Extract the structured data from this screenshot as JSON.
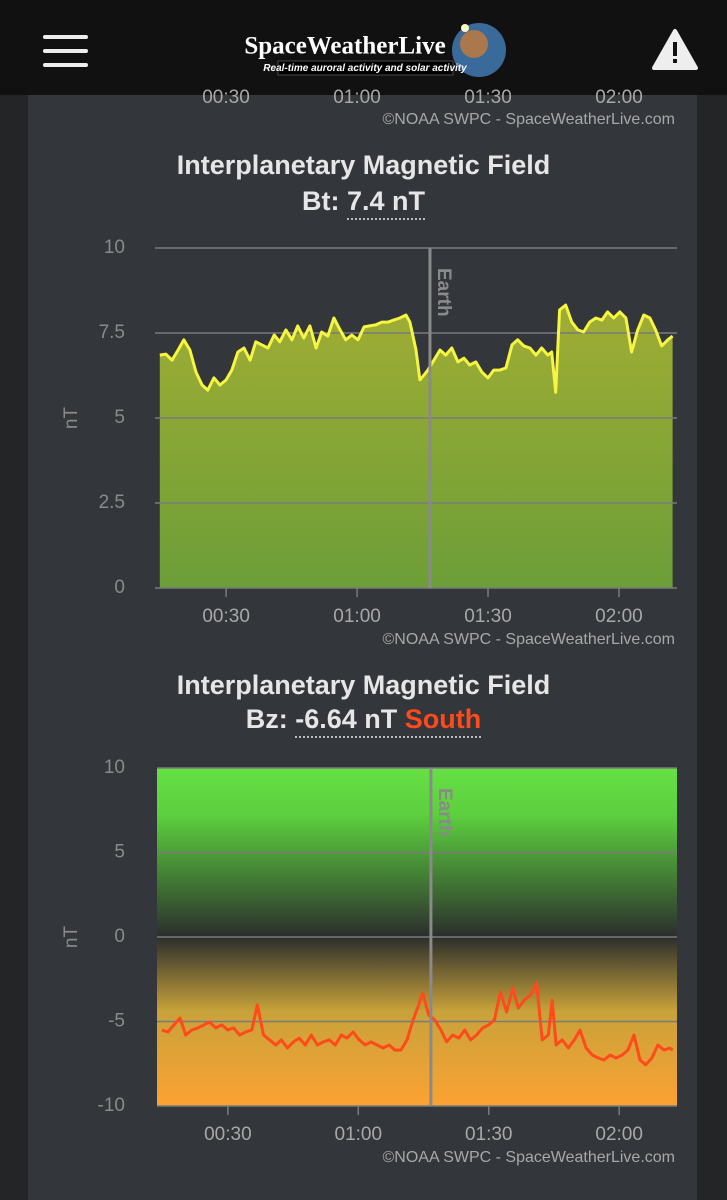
{
  "header": {
    "logo": "SpaceWeatherLive",
    "tagline": "Real-time auroral activity and solar activity"
  },
  "previous_chart": {
    "xtick_labels": [
      "00:30",
      "01:00",
      "01:30",
      "02:00"
    ],
    "credit": "©NOAA SWPC - SpaceWeatherLive.com"
  },
  "chart_data": [
    {
      "type": "area",
      "title": "Interplanetary Magnetic Field",
      "readout": {
        "label": "Bt:",
        "value": 7.4,
        "value_label": "7.4 nT"
      },
      "y_label": "nT",
      "credit": "©NOAA SWPC - SpaceWeatherLive.com",
      "color": "#f5f542",
      "grid": true,
      "xlim": [
        13.7,
        133.3
      ],
      "xticks": [
        {
          "value": 30,
          "label": "00:30"
        },
        {
          "value": 60,
          "label": "01:00"
        },
        {
          "value": 90,
          "label": "01:30"
        },
        {
          "value": 120,
          "label": "02:00"
        }
      ],
      "ylim": [
        0,
        10
      ],
      "yticks": [
        0,
        2.5,
        5,
        7.5,
        10
      ],
      "earth_marker": {
        "x": 76.7,
        "label": "Earth"
      },
      "x": [
        14.8,
        16.2,
        17.6,
        19.0,
        20.3,
        21.7,
        23.1,
        24.5,
        25.8,
        27.2,
        28.6,
        30.0,
        31.3,
        32.7,
        34.1,
        35.5,
        36.8,
        38.2,
        39.6,
        41.0,
        42.3,
        43.7,
        45.1,
        46.4,
        47.8,
        49.2,
        50.6,
        51.9,
        53.3,
        54.7,
        56.1,
        57.4,
        58.8,
        60.2,
        61.6,
        62.9,
        64.3,
        65.7,
        67.1,
        68.4,
        69.8,
        71.2,
        72.1,
        73.5,
        74.4,
        75.3,
        76.2,
        77.6,
        79.0,
        80.3,
        81.7,
        83.1,
        84.5,
        85.8,
        87.2,
        88.6,
        90.0,
        91.3,
        92.7,
        94.1,
        95.5,
        96.8,
        98.2,
        99.6,
        101.0,
        102.3,
        103.7,
        104.6,
        105.5,
        106.4,
        107.8,
        109.2,
        110.6,
        111.9,
        113.3,
        114.7,
        116.1,
        117.4,
        118.8,
        120.2,
        121.6,
        122.9,
        124.3,
        125.7,
        127.1,
        128.4,
        129.8,
        131.2,
        132.3
      ],
      "values": [
        6.85,
        6.88,
        6.7,
        7.0,
        7.3,
        7.0,
        6.35,
        5.97,
        5.82,
        6.18,
        5.97,
        6.12,
        6.41,
        6.94,
        7.06,
        6.7,
        7.24,
        7.15,
        7.06,
        7.44,
        7.24,
        7.59,
        7.3,
        7.71,
        7.35,
        7.71,
        7.06,
        7.53,
        7.41,
        7.94,
        7.59,
        7.3,
        7.44,
        7.3,
        7.68,
        7.71,
        7.74,
        7.82,
        7.82,
        7.88,
        7.94,
        8.03,
        7.82,
        7.0,
        6.12,
        6.26,
        6.41,
        6.7,
        7.0,
        6.85,
        7.06,
        6.65,
        6.76,
        6.56,
        6.65,
        6.35,
        6.18,
        6.41,
        6.41,
        6.47,
        7.15,
        7.3,
        7.12,
        7.06,
        6.85,
        7.06,
        6.85,
        6.94,
        5.76,
        8.18,
        8.32,
        7.82,
        7.59,
        7.53,
        7.82,
        7.94,
        7.88,
        8.12,
        7.94,
        8.12,
        7.94,
        6.94,
        7.59,
        8.03,
        7.94,
        7.59,
        7.12,
        7.3,
        7.41
      ]
    },
    {
      "type": "line",
      "title": "Interplanetary Magnetic Field",
      "readout": {
        "label": "Bz:",
        "value": -6.64,
        "value_label": "-6.64 nT",
        "direction": "South"
      },
      "y_label": "nT",
      "credit": "©NOAA SWPC - SpaceWeatherLive.com",
      "color": "#ff4a1c",
      "grid": true,
      "xlim": [
        13.7,
        133.3
      ],
      "xticks": [
        {
          "value": 30,
          "label": "00:30"
        },
        {
          "value": 60,
          "label": "01:00"
        },
        {
          "value": 90,
          "label": "01:30"
        },
        {
          "value": 120,
          "label": "02:00"
        }
      ],
      "ylim": [
        -10,
        10
      ],
      "yticks": [
        -10,
        -5,
        0,
        5,
        10
      ],
      "earth_marker": {
        "x": 76.7,
        "label": "Earth"
      },
      "x": [
        14.8,
        16.2,
        17.6,
        19.0,
        20.3,
        21.7,
        23.1,
        24.5,
        25.8,
        27.2,
        28.6,
        30.0,
        31.3,
        32.7,
        34.1,
        35.5,
        36.8,
        38.2,
        39.6,
        41.0,
        42.3,
        43.7,
        45.1,
        46.4,
        47.8,
        49.2,
        50.6,
        51.9,
        53.3,
        54.7,
        56.1,
        57.4,
        58.8,
        60.2,
        61.6,
        62.9,
        64.3,
        65.7,
        67.1,
        68.4,
        69.8,
        71.2,
        72.6,
        73.9,
        74.8,
        76.2,
        77.6,
        79.0,
        80.3,
        81.7,
        83.1,
        84.5,
        85.8,
        87.2,
        88.6,
        90.0,
        91.3,
        92.7,
        94.1,
        95.5,
        96.8,
        98.2,
        99.6,
        101.0,
        102.3,
        103.7,
        104.6,
        105.5,
        106.9,
        108.3,
        109.7,
        111.0,
        112.4,
        113.8,
        115.2,
        116.5,
        117.9,
        119.3,
        120.7,
        122.0,
        123.4,
        124.8,
        126.1,
        127.5,
        128.9,
        130.3,
        131.6,
        132.3
      ],
      "values": [
        -5.5,
        -5.62,
        -5.2,
        -4.79,
        -5.8,
        -5.5,
        -5.38,
        -5.2,
        -5.03,
        -5.38,
        -5.2,
        -5.5,
        -5.38,
        -5.8,
        -5.62,
        -5.5,
        -4.02,
        -5.8,
        -6.09,
        -6.39,
        -6.09,
        -6.57,
        -6.21,
        -5.98,
        -6.39,
        -5.8,
        -6.39,
        -6.21,
        -6.09,
        -6.39,
        -5.8,
        -5.98,
        -5.62,
        -6.09,
        -6.39,
        -6.21,
        -6.39,
        -6.57,
        -6.39,
        -6.69,
        -6.69,
        -6.09,
        -4.91,
        -4.02,
        -3.31,
        -4.62,
        -4.91,
        -5.5,
        -6.21,
        -5.8,
        -5.98,
        -5.5,
        -6.09,
        -5.8,
        -5.38,
        -5.2,
        -4.91,
        -3.25,
        -4.44,
        -3.02,
        -4.2,
        -3.73,
        -3.43,
        -2.72,
        -6.09,
        -5.8,
        -3.73,
        -6.39,
        -6.09,
        -6.57,
        -6.09,
        -5.5,
        -6.57,
        -6.98,
        -7.16,
        -7.28,
        -6.98,
        -7.16,
        -6.98,
        -6.69,
        -5.8,
        -7.28,
        -7.57,
        -7.16,
        -6.39,
        -6.69,
        -6.57,
        -6.69
      ]
    }
  ]
}
